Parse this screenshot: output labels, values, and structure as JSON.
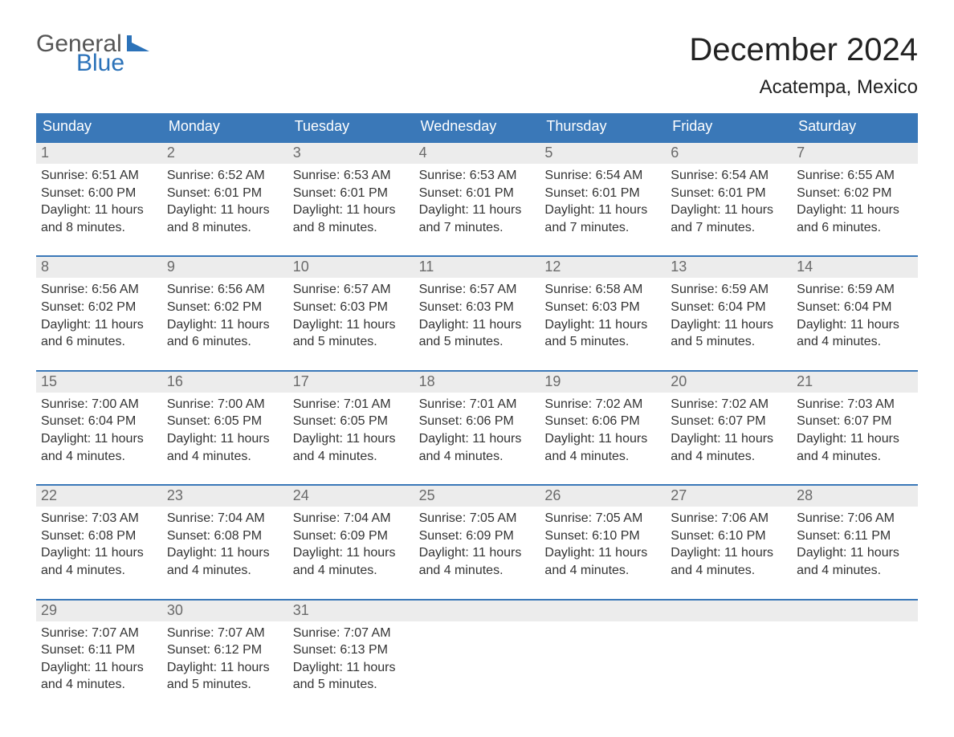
{
  "brand": {
    "word1": "General",
    "word2": "Blue"
  },
  "colors": {
    "header_bg": "#3a78b8",
    "header_text": "#ffffff",
    "band_bg": "#ececec",
    "daynum_text": "#6a6a6a",
    "body_text": "#333333",
    "accent": "#2b72b9"
  },
  "title": "December 2024",
  "location": "Acatempa, Mexico",
  "days_of_week": [
    "Sunday",
    "Monday",
    "Tuesday",
    "Wednesday",
    "Thursday",
    "Friday",
    "Saturday"
  ],
  "weeks": [
    [
      {
        "n": "1",
        "sunrise": "Sunrise: 6:51 AM",
        "sunset": "Sunset: 6:00 PM",
        "daylight": "Daylight: 11 hours and 8 minutes."
      },
      {
        "n": "2",
        "sunrise": "Sunrise: 6:52 AM",
        "sunset": "Sunset: 6:01 PM",
        "daylight": "Daylight: 11 hours and 8 minutes."
      },
      {
        "n": "3",
        "sunrise": "Sunrise: 6:53 AM",
        "sunset": "Sunset: 6:01 PM",
        "daylight": "Daylight: 11 hours and 8 minutes."
      },
      {
        "n": "4",
        "sunrise": "Sunrise: 6:53 AM",
        "sunset": "Sunset: 6:01 PM",
        "daylight": "Daylight: 11 hours and 7 minutes."
      },
      {
        "n": "5",
        "sunrise": "Sunrise: 6:54 AM",
        "sunset": "Sunset: 6:01 PM",
        "daylight": "Daylight: 11 hours and 7 minutes."
      },
      {
        "n": "6",
        "sunrise": "Sunrise: 6:54 AM",
        "sunset": "Sunset: 6:01 PM",
        "daylight": "Daylight: 11 hours and 7 minutes."
      },
      {
        "n": "7",
        "sunrise": "Sunrise: 6:55 AM",
        "sunset": "Sunset: 6:02 PM",
        "daylight": "Daylight: 11 hours and 6 minutes."
      }
    ],
    [
      {
        "n": "8",
        "sunrise": "Sunrise: 6:56 AM",
        "sunset": "Sunset: 6:02 PM",
        "daylight": "Daylight: 11 hours and 6 minutes."
      },
      {
        "n": "9",
        "sunrise": "Sunrise: 6:56 AM",
        "sunset": "Sunset: 6:02 PM",
        "daylight": "Daylight: 11 hours and 6 minutes."
      },
      {
        "n": "10",
        "sunrise": "Sunrise: 6:57 AM",
        "sunset": "Sunset: 6:03 PM",
        "daylight": "Daylight: 11 hours and 5 minutes."
      },
      {
        "n": "11",
        "sunrise": "Sunrise: 6:57 AM",
        "sunset": "Sunset: 6:03 PM",
        "daylight": "Daylight: 11 hours and 5 minutes."
      },
      {
        "n": "12",
        "sunrise": "Sunrise: 6:58 AM",
        "sunset": "Sunset: 6:03 PM",
        "daylight": "Daylight: 11 hours and 5 minutes."
      },
      {
        "n": "13",
        "sunrise": "Sunrise: 6:59 AM",
        "sunset": "Sunset: 6:04 PM",
        "daylight": "Daylight: 11 hours and 5 minutes."
      },
      {
        "n": "14",
        "sunrise": "Sunrise: 6:59 AM",
        "sunset": "Sunset: 6:04 PM",
        "daylight": "Daylight: 11 hours and 4 minutes."
      }
    ],
    [
      {
        "n": "15",
        "sunrise": "Sunrise: 7:00 AM",
        "sunset": "Sunset: 6:04 PM",
        "daylight": "Daylight: 11 hours and 4 minutes."
      },
      {
        "n": "16",
        "sunrise": "Sunrise: 7:00 AM",
        "sunset": "Sunset: 6:05 PM",
        "daylight": "Daylight: 11 hours and 4 minutes."
      },
      {
        "n": "17",
        "sunrise": "Sunrise: 7:01 AM",
        "sunset": "Sunset: 6:05 PM",
        "daylight": "Daylight: 11 hours and 4 minutes."
      },
      {
        "n": "18",
        "sunrise": "Sunrise: 7:01 AM",
        "sunset": "Sunset: 6:06 PM",
        "daylight": "Daylight: 11 hours and 4 minutes."
      },
      {
        "n": "19",
        "sunrise": "Sunrise: 7:02 AM",
        "sunset": "Sunset: 6:06 PM",
        "daylight": "Daylight: 11 hours and 4 minutes."
      },
      {
        "n": "20",
        "sunrise": "Sunrise: 7:02 AM",
        "sunset": "Sunset: 6:07 PM",
        "daylight": "Daylight: 11 hours and 4 minutes."
      },
      {
        "n": "21",
        "sunrise": "Sunrise: 7:03 AM",
        "sunset": "Sunset: 6:07 PM",
        "daylight": "Daylight: 11 hours and 4 minutes."
      }
    ],
    [
      {
        "n": "22",
        "sunrise": "Sunrise: 7:03 AM",
        "sunset": "Sunset: 6:08 PM",
        "daylight": "Daylight: 11 hours and 4 minutes."
      },
      {
        "n": "23",
        "sunrise": "Sunrise: 7:04 AM",
        "sunset": "Sunset: 6:08 PM",
        "daylight": "Daylight: 11 hours and 4 minutes."
      },
      {
        "n": "24",
        "sunrise": "Sunrise: 7:04 AM",
        "sunset": "Sunset: 6:09 PM",
        "daylight": "Daylight: 11 hours and 4 minutes."
      },
      {
        "n": "25",
        "sunrise": "Sunrise: 7:05 AM",
        "sunset": "Sunset: 6:09 PM",
        "daylight": "Daylight: 11 hours and 4 minutes."
      },
      {
        "n": "26",
        "sunrise": "Sunrise: 7:05 AM",
        "sunset": "Sunset: 6:10 PM",
        "daylight": "Daylight: 11 hours and 4 minutes."
      },
      {
        "n": "27",
        "sunrise": "Sunrise: 7:06 AM",
        "sunset": "Sunset: 6:10 PM",
        "daylight": "Daylight: 11 hours and 4 minutes."
      },
      {
        "n": "28",
        "sunrise": "Sunrise: 7:06 AM",
        "sunset": "Sunset: 6:11 PM",
        "daylight": "Daylight: 11 hours and 4 minutes."
      }
    ],
    [
      {
        "n": "29",
        "sunrise": "Sunrise: 7:07 AM",
        "sunset": "Sunset: 6:11 PM",
        "daylight": "Daylight: 11 hours and 4 minutes."
      },
      {
        "n": "30",
        "sunrise": "Sunrise: 7:07 AM",
        "sunset": "Sunset: 6:12 PM",
        "daylight": "Daylight: 11 hours and 5 minutes."
      },
      {
        "n": "31",
        "sunrise": "Sunrise: 7:07 AM",
        "sunset": "Sunset: 6:13 PM",
        "daylight": "Daylight: 11 hours and 5 minutes."
      },
      null,
      null,
      null,
      null
    ]
  ]
}
